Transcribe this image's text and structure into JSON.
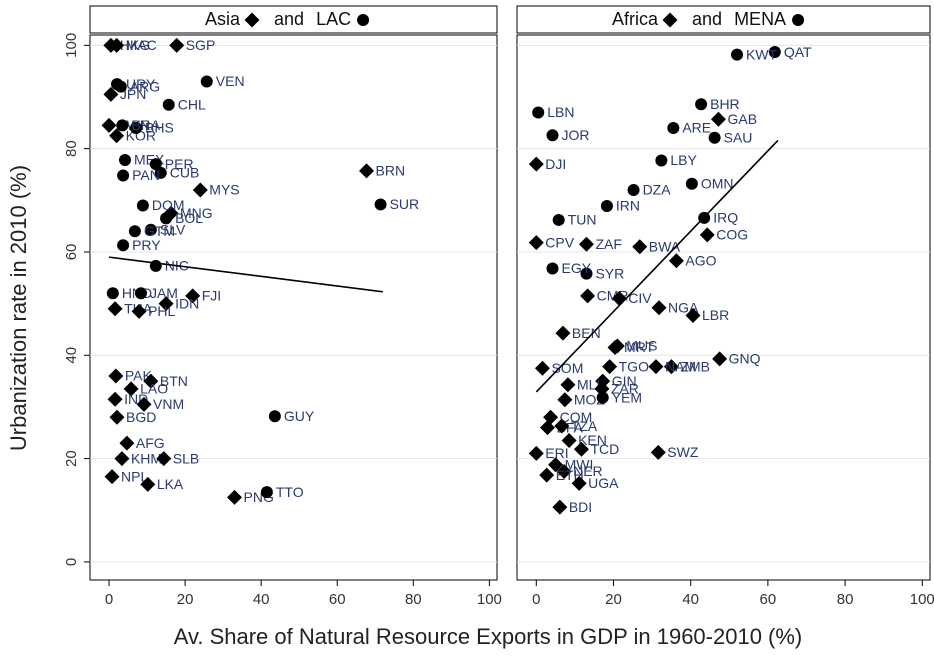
{
  "x_label": "Av. Share of Natural Resource Exports in GDP in 1960-2010 (%)",
  "y_label": "Urbanization rate in 2010 (%)",
  "legend_joiner": "and",
  "chart_data": [
    {
      "type": "scatter",
      "xlim": [
        -5,
        102
      ],
      "ylim": [
        -3.5,
        102
      ],
      "xticks": [
        0,
        20,
        40,
        60,
        80,
        100
      ],
      "yticks": [
        0,
        20,
        40,
        60,
        80,
        100
      ],
      "grid": true,
      "fit_line": {
        "x": [
          0,
          72
        ],
        "y": [
          59,
          52.3
        ]
      },
      "series": [
        {
          "name": "Asia",
          "marker": "diamond",
          "color": "#000000",
          "labels": [
            "HKG",
            "MAC",
            "SGP",
            "JPN",
            "TWN",
            "KOR",
            "BRN",
            "MYS",
            "MNG",
            "FJI",
            "IDN",
            "THA",
            "PHL",
            "PAK",
            "BTN",
            "LAO",
            "IND",
            "VNM",
            "BGD",
            "AFG",
            "KHM",
            "SLB",
            "NPL",
            "LKA",
            "PNG"
          ],
          "x": [
            0.5,
            2,
            17.8,
            0.5,
            0,
            2,
            67.7,
            24,
            16.3,
            22,
            15,
            1.6,
            7.9,
            1.8,
            11,
            5.8,
            1.6,
            9.2,
            2.1,
            4.7,
            3.4,
            14.4,
            0.8,
            10.2,
            33
          ],
          "values": [
            100,
            100,
            100,
            90.5,
            84.5,
            82.5,
            75.7,
            72,
            67.5,
            51.5,
            50,
            49,
            48.5,
            36,
            35,
            33.5,
            31.5,
            30.5,
            28,
            23,
            20,
            20,
            16.5,
            15,
            12.5
          ]
        },
        {
          "name": "LAC",
          "marker": "circle",
          "color": "#000000",
          "labels": [
            "URY",
            "ARG",
            "VEN",
            "CHL",
            "BHS",
            "BRA",
            "MEX",
            "PER",
            "CUB",
            "PAN",
            "SUR",
            "DOM",
            "BOL",
            "SLV",
            "GTM",
            "PRY",
            "NIC",
            "HND",
            "JAM",
            "GUY",
            "TTO"
          ],
          "x": [
            2.1,
            3.1,
            25.7,
            15.7,
            7.1,
            3.5,
            4.2,
            12.3,
            13.6,
            3.7,
            71.4,
            8.9,
            15,
            11,
            6.8,
            3.7,
            12.3,
            1,
            8.4,
            43.6,
            41.5
          ],
          "values": [
            92.5,
            92,
            93,
            88.5,
            84,
            84.5,
            77.8,
            77,
            75.3,
            74.8,
            69.2,
            69,
            66.5,
            64.3,
            64,
            61.3,
            57.3,
            52,
            52,
            28.2,
            13.5
          ]
        }
      ]
    },
    {
      "type": "scatter",
      "xlim": [
        -5,
        102
      ],
      "ylim": [
        -3.5,
        102
      ],
      "xticks": [
        0,
        20,
        40,
        60,
        80,
        100
      ],
      "yticks": [
        0,
        20,
        40,
        60,
        80,
        100
      ],
      "grid": true,
      "fit_line": {
        "x": [
          0,
          62.6
        ],
        "y": [
          32.9,
          81.6
        ]
      },
      "series": [
        {
          "name": "Africa",
          "marker": "diamond",
          "color": "#000000",
          "labels": [
            "DJI",
            "GAB",
            "COG",
            "AGO",
            "CPV",
            "ZAF",
            "BWA",
            "CMR",
            "CIV",
            "NGA",
            "LBR",
            "BEN",
            "MUS",
            "MRT",
            "GNQ",
            "ZMB",
            "NAM",
            "SOM",
            "TGO",
            "GIN",
            "MLI",
            "ZAR",
            "MOZ",
            "COM",
            "BFA",
            "TZA",
            "KEN",
            "TCD",
            "SWZ",
            "ERI",
            "MWI",
            "NER",
            "ETH",
            "UGA",
            "BDI"
          ],
          "x": [
            0,
            47.2,
            44.3,
            36.3,
            0,
            13,
            26.8,
            13.3,
            21.5,
            31.8,
            40.6,
            6.9,
            21,
            20.4,
            47.5,
            35,
            31,
            1.6,
            19,
            17.2,
            8.2,
            17,
            7.4,
            3.7,
            2.9,
            6.6,
            8.5,
            11.7,
            31.6,
            0,
            5,
            7.2,
            2.7,
            11.1,
            6.1
          ],
          "values": [
            77,
            85.7,
            63.3,
            58.3,
            61.8,
            61.5,
            61,
            51.5,
            51,
            49.2,
            47.7,
            44.3,
            41.8,
            41.5,
            39.3,
            37.8,
            37.8,
            37.5,
            37.8,
            35,
            34.3,
            33.5,
            31.4,
            28,
            26,
            26.3,
            23.5,
            21.8,
            21.2,
            21,
            18.8,
            17.5,
            16.8,
            15.2,
            10.6
          ]
        },
        {
          "name": "MENA",
          "marker": "circle",
          "color": "#000000",
          "labels": [
            "QAT",
            "KWT",
            "BHR",
            "LBN",
            "JOR",
            "ARE",
            "SAU",
            "LBY",
            "OMN",
            "DZA",
            "IRN",
            "TUN",
            "IRQ",
            "SYR",
            "EGY",
            "YEM"
          ],
          "x": [
            61.8,
            52,
            42.7,
            0.5,
            4.2,
            35.5,
            46.2,
            32.4,
            40.3,
            25.2,
            18.3,
            5.8,
            43.5,
            13,
            4.2,
            17.2
          ],
          "values": [
            98.7,
            98.2,
            88.6,
            87,
            82.6,
            84,
            82.1,
            77.7,
            73.2,
            72,
            68.9,
            66.2,
            66.6,
            55.8,
            56.8,
            31.8
          ]
        }
      ]
    }
  ]
}
